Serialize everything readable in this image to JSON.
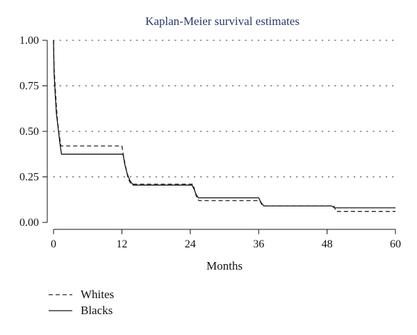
{
  "chart_data": {
    "type": "line",
    "title": "Kaplan-Meier survival estimates",
    "xlabel": "Months",
    "ylabel": "",
    "xlim": [
      0,
      60
    ],
    "ylim": [
      0,
      1
    ],
    "x_ticks": [
      "0",
      "12",
      "24",
      "36",
      "48",
      "60"
    ],
    "y_ticks": [
      "0.00",
      "0.25",
      "0.50",
      "0.75",
      "1.00"
    ],
    "grid": "horizontal dotted",
    "legend_position": "bottom-left",
    "series": [
      {
        "name": "Whites",
        "style": "dashed",
        "color": "#222222",
        "x": [
          0,
          0.1,
          0.3,
          0.5,
          0.7,
          1.0,
          1.3,
          12.0,
          12.3,
          12.7,
          13.1,
          13.6,
          24.5,
          24.8,
          25.1,
          25.5,
          36.2,
          36.5,
          36.8,
          49.2,
          49.6,
          60
        ],
        "y": [
          1.0,
          0.85,
          0.74,
          0.64,
          0.56,
          0.48,
          0.42,
          0.42,
          0.36,
          0.3,
          0.24,
          0.21,
          0.21,
          0.17,
          0.14,
          0.12,
          0.12,
          0.1,
          0.09,
          0.09,
          0.06,
          0.06
        ]
      },
      {
        "name": "Blacks",
        "style": "solid",
        "color": "#111111",
        "x": [
          0,
          0.1,
          0.3,
          0.5,
          0.8,
          1.1,
          1.4,
          12.2,
          12.5,
          12.9,
          13.4,
          14.0,
          24.3,
          24.7,
          25.0,
          25.4,
          36.0,
          36.4,
          36.9,
          48.8,
          49.3,
          60
        ],
        "y": [
          1.0,
          0.82,
          0.7,
          0.6,
          0.52,
          0.44,
          0.375,
          0.375,
          0.32,
          0.27,
          0.23,
          0.205,
          0.205,
          0.18,
          0.155,
          0.135,
          0.135,
          0.11,
          0.09,
          0.09,
          0.08,
          0.08
        ]
      }
    ]
  }
}
